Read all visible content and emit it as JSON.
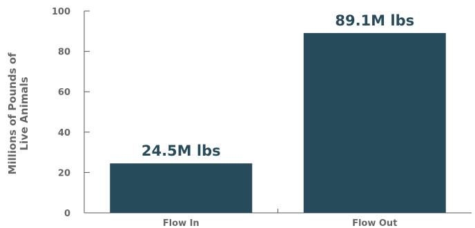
{
  "chart_data": {
    "type": "bar",
    "title": "",
    "xlabel": "",
    "ylabel_lines": [
      "Millions of Pounds of",
      "Live Animals"
    ],
    "categories": [
      "Flow In",
      "Flow Out"
    ],
    "values": [
      24.5,
      89.1
    ],
    "data_labels": [
      "24.5M lbs",
      "89.1M lbs"
    ],
    "ylim": [
      0,
      100
    ],
    "yticks": [
      0,
      20,
      40,
      60,
      80,
      100
    ],
    "grid": false,
    "legend": "none",
    "bar_color": "#264b5a"
  }
}
